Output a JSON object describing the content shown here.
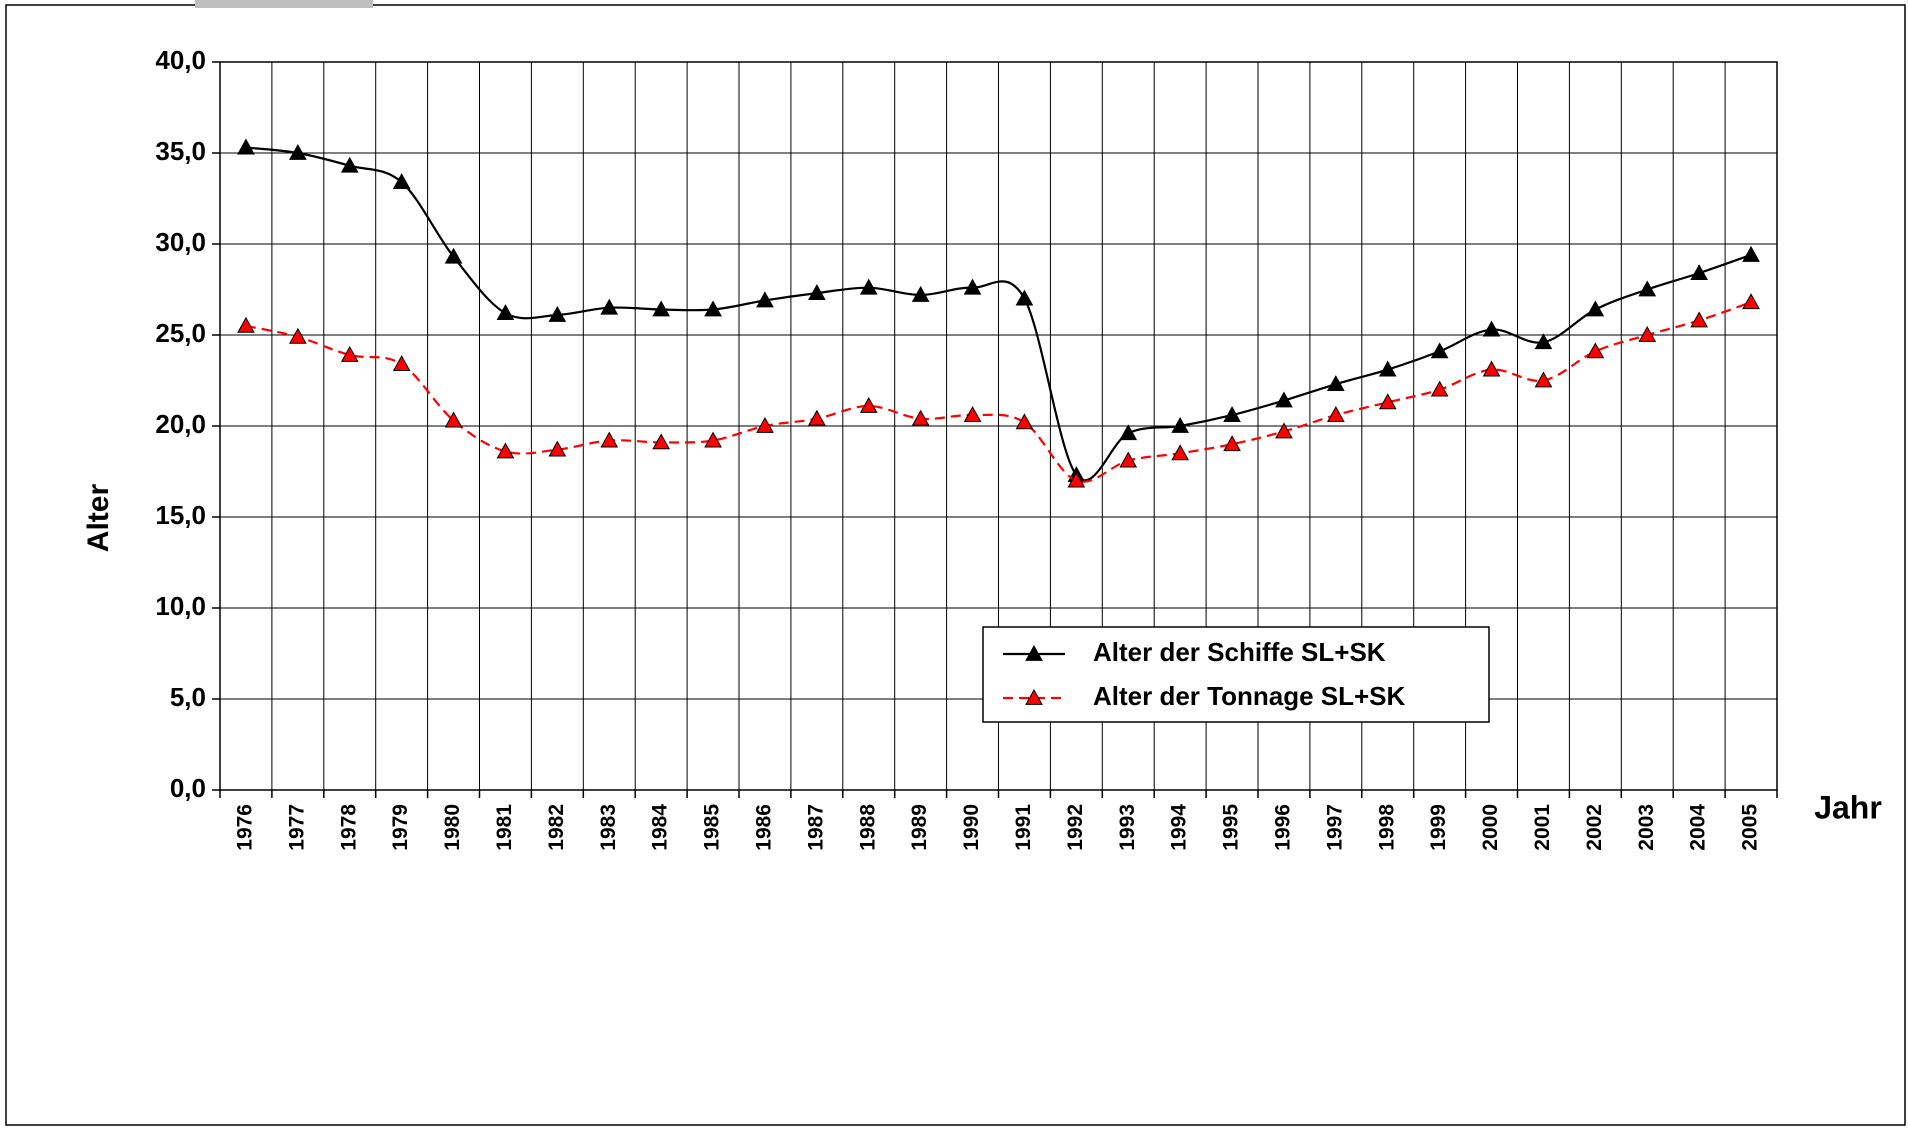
{
  "chart_data": {
    "type": "line",
    "x_label": "Jahr",
    "y_label": "Alter",
    "categories": [
      "1976",
      "1977",
      "1978",
      "1979",
      "1980",
      "1981",
      "1982",
      "1983",
      "1984",
      "1985",
      "1986",
      "1987",
      "1988",
      "1989",
      "1990",
      "1991",
      "1992",
      "1993",
      "1994",
      "1995",
      "1996",
      "1997",
      "1998",
      "1999",
      "2000",
      "2001",
      "2002",
      "2003",
      "2004",
      "2005"
    ],
    "series": [
      {
        "name": "Alter der Schiffe SL+SK",
        "color": "#000000",
        "dash": false,
        "values": [
          35.3,
          35.0,
          34.3,
          33.4,
          29.3,
          26.2,
          26.1,
          26.5,
          26.4,
          26.4,
          26.9,
          27.3,
          27.6,
          27.2,
          27.6,
          27.0,
          17.3,
          19.6,
          20.0,
          20.6,
          21.4,
          22.3,
          23.1,
          24.1,
          25.3,
          24.6,
          26.4,
          27.5,
          28.4,
          29.4
        ]
      },
      {
        "name": "Alter der Tonnage SL+SK",
        "color": "#ff0000",
        "dash": true,
        "values": [
          25.5,
          24.9,
          23.9,
          23.4,
          20.3,
          18.6,
          18.7,
          19.2,
          19.1,
          19.2,
          20.0,
          20.4,
          21.1,
          20.4,
          20.6,
          20.2,
          17.0,
          18.1,
          18.5,
          19.0,
          19.7,
          20.6,
          21.3,
          22.0,
          23.1,
          22.5,
          24.1,
          25.0,
          25.8,
          26.8
        ]
      }
    ],
    "ylim": [
      0,
      40
    ],
    "yticks": [
      {
        "value": 0,
        "label": "0,0"
      },
      {
        "value": 5,
        "label": "5,0"
      },
      {
        "value": 10,
        "label": "10,0"
      },
      {
        "value": 15,
        "label": "15,0"
      },
      {
        "value": 20,
        "label": "20,0"
      },
      {
        "value": 25,
        "label": "25,0"
      },
      {
        "value": 30,
        "label": "30,0"
      },
      {
        "value": 35,
        "label": "35,0"
      },
      {
        "value": 40,
        "label": "40,0"
      }
    ],
    "grid": true,
    "smooth": true,
    "marker": "triangle"
  }
}
